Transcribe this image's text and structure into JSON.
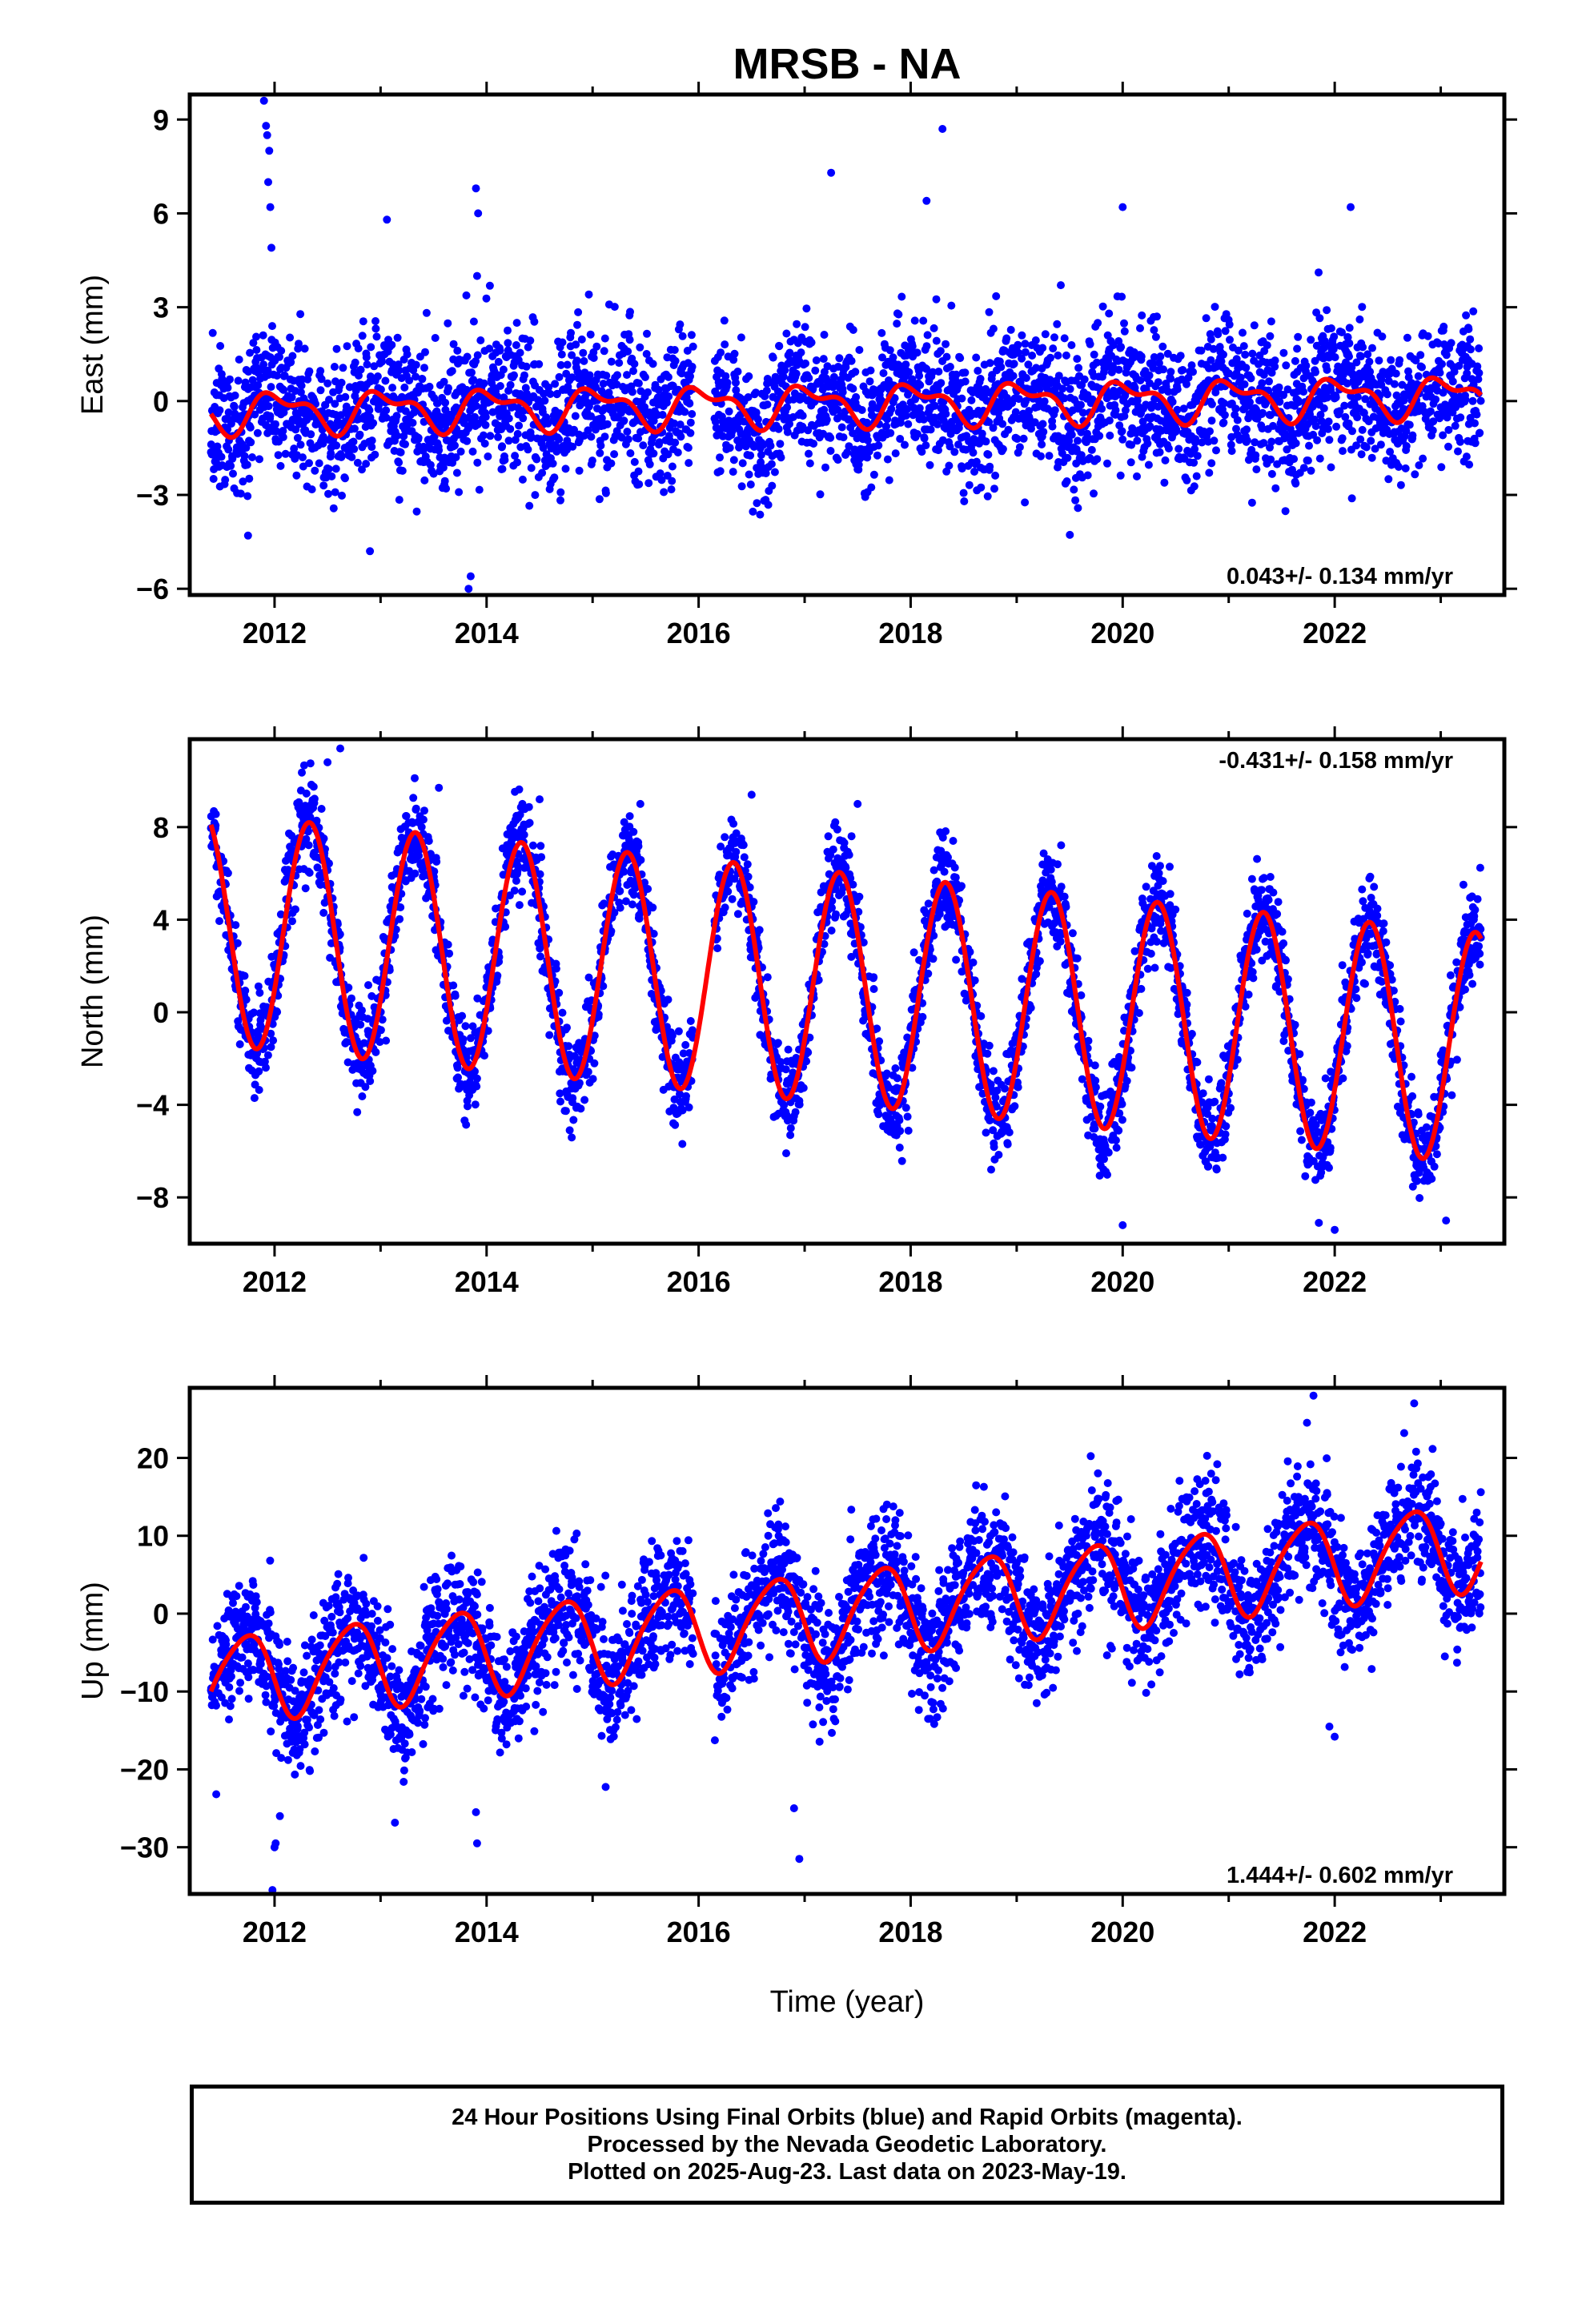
{
  "title": "MRSB - NA",
  "xlabel": "Time (year)",
  "colors": {
    "points": "#0000ff",
    "fit": "#ff0000",
    "axes": "#000000"
  },
  "chart_data": [
    {
      "type": "scatter",
      "ylabel": "East (mm)",
      "xlim": [
        2011.2,
        2023.6
      ],
      "ylim": [
        -6.2,
        9.8
      ],
      "xticks": [
        2012,
        2014,
        2016,
        2018,
        2020,
        2022
      ],
      "yticks": [
        9,
        6,
        3,
        0,
        -3,
        -6
      ],
      "ytick_labels": [
        "9",
        "6",
        "3",
        "0",
        "−3",
        "−6"
      ],
      "rate_label": "0.043+/- 0.134 mm/yr",
      "rate_position": "bottom-right",
      "series": [
        {
          "kind": "points",
          "color": "#0000ff"
        },
        {
          "kind": "fit",
          "color": "#ff0000"
        }
      ],
      "model": {
        "start": 2011.4,
        "end": 2023.38,
        "t0": 2011.4,
        "offset": -0.35,
        "slope": 0.043,
        "annual_amp": 0.55,
        "annual_phase": 2.2,
        "semi_amp": 0.3,
        "semi_phase": 0.5,
        "gap": [
          2015.95,
          2016.15
        ]
      },
      "scatter_sd": 1.1,
      "outliers": [
        [
          2011.9,
          9.6
        ],
        [
          2011.92,
          8.8
        ],
        [
          2011.93,
          8.5
        ],
        [
          2011.95,
          8.0
        ],
        [
          2011.94,
          7.0
        ],
        [
          2011.96,
          6.2
        ],
        [
          2011.97,
          4.9
        ],
        [
          2013.06,
          5.8
        ],
        [
          2013.9,
          6.8
        ],
        [
          2013.92,
          6.0
        ],
        [
          2013.91,
          4.0
        ],
        [
          2017.25,
          7.3
        ],
        [
          2018.15,
          6.4
        ],
        [
          2018.3,
          8.7
        ],
        [
          2020.0,
          6.2
        ],
        [
          2022.15,
          6.2
        ],
        [
          2013.83,
          -6.0
        ],
        [
          2013.85,
          -5.6
        ],
        [
          2012.9,
          -4.8
        ],
        [
          2011.75,
          -4.3
        ]
      ]
    },
    {
      "type": "scatter",
      "ylabel": "North (mm)",
      "xlim": [
        2011.2,
        2023.6
      ],
      "ylim": [
        -10.0,
        11.8
      ],
      "xticks": [
        2012,
        2014,
        2016,
        2018,
        2020,
        2022
      ],
      "yticks": [
        8,
        4,
        0,
        -4,
        -8
      ],
      "ytick_labels": [
        "8",
        "4",
        "0",
        "−4",
        "−8"
      ],
      "rate_label": "-0.431+/- 0.158 mm/yr",
      "rate_position": "top-right",
      "series": [
        {
          "kind": "points",
          "color": "#0000ff"
        },
        {
          "kind": "fit",
          "color": "#ff0000"
        }
      ],
      "model": {
        "start": 2011.4,
        "end": 2023.38,
        "t0": 2011.4,
        "offset": 3.6,
        "slope": -0.431,
        "annual_amp": 5.0,
        "annual_phase": 0.45,
        "semi_amp": 0.0,
        "semi_phase": 0.0,
        "gap": [
          2015.95,
          2016.15
        ]
      },
      "scatter_sd": 1.0,
      "outliers": [
        [
          2012.5,
          10.8
        ],
        [
          2012.62,
          11.4
        ],
        [
          2013.55,
          9.7
        ],
        [
          2014.5,
          9.2
        ],
        [
          2015.45,
          9.0
        ],
        [
          2016.5,
          9.4
        ],
        [
          2017.5,
          9.0
        ],
        [
          2022.0,
          -9.4
        ],
        [
          2021.85,
          -9.1
        ],
        [
          2020.0,
          -9.2
        ],
        [
          2023.05,
          -9.0
        ]
      ]
    },
    {
      "type": "scatter",
      "ylabel": "Up (mm)",
      "xlim": [
        2011.2,
        2023.6
      ],
      "ylim": [
        -36,
        29
      ],
      "xticks": [
        2012,
        2014,
        2016,
        2018,
        2020,
        2022
      ],
      "yticks": [
        20,
        10,
        0,
        -10,
        -20,
        -30
      ],
      "ytick_labels": [
        "20",
        "10",
        "0",
        "−10",
        "−20",
        "−30"
      ],
      "rate_label": "1.444+/- 0.602 mm/yr",
      "rate_position": "bottom-right",
      "series": [
        {
          "kind": "points",
          "color": "#0000ff"
        },
        {
          "kind": "fit",
          "color": "#ff0000"
        }
      ],
      "model": {
        "start": 2011.4,
        "end": 2023.38,
        "t0": 2011.4,
        "offset": -8.5,
        "slope": 1.444,
        "annual_amp": 5.5,
        "annual_phase": -2.0,
        "semi_amp": 0.8,
        "semi_phase": 0.0,
        "gap": [
          2015.95,
          2016.15
        ]
      },
      "scatter_sd": 4.0,
      "outliers": [
        [
          2011.45,
          -23.2
        ],
        [
          2012.0,
          -30.0
        ],
        [
          2012.01,
          -29.5
        ],
        [
          2011.98,
          -35.5
        ],
        [
          2012.05,
          -26.0
        ],
        [
          2013.9,
          -25.5
        ],
        [
          2013.91,
          -29.5
        ],
        [
          2016.9,
          -25.0
        ],
        [
          2016.95,
          -31.5
        ],
        [
          2021.95,
          -14.5
        ],
        [
          2022.0,
          -15.8
        ],
        [
          2021.8,
          28.0
        ],
        [
          2022.75,
          27.0
        ]
      ]
    }
  ],
  "footer": {
    "line1": "24 Hour Positions Using Final Orbits (blue) and Rapid Orbits (magenta).",
    "line2": "Processed by the Nevada Geodetic Laboratory.",
    "line3": "Plotted on 2025-Aug-23. Last data on 2023-May-19."
  }
}
